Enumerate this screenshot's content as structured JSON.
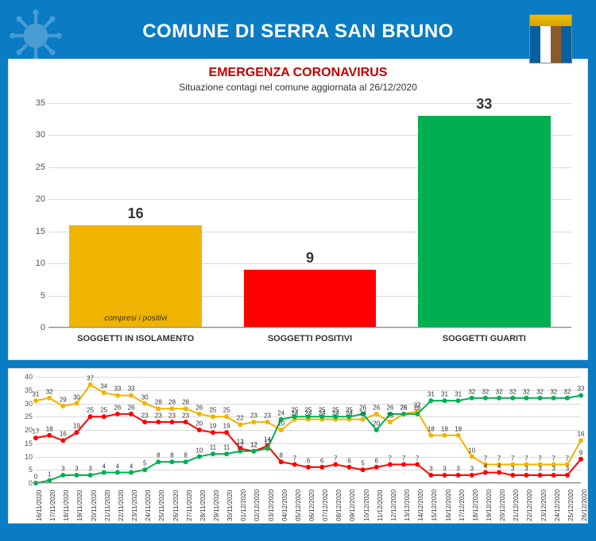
{
  "header": {
    "title": "COMUNE DI SERRA SAN BRUNO"
  },
  "bar_chart": {
    "type": "bar",
    "title": "EMERGENZA CORONAVIRUS",
    "subtitle": "Situazione contagi nel comune aggiornata al 26/12/2020",
    "title_color": "#c00000",
    "subtitle_color": "#333333",
    "title_fontsize": 16,
    "subtitle_fontsize": 12,
    "ylim": [
      0,
      35
    ],
    "ytick_step": 5,
    "grid_color": "#d9d9d9",
    "background_color": "#ffffff",
    "categories": [
      "SOGGETTI IN ISOLAMENTO",
      "SOGGETTI POSITIVI",
      "SOGGETTI GUARITI"
    ],
    "values": [
      16,
      9,
      33
    ],
    "bar_colors": [
      "#f0b400",
      "#ff0000",
      "#00b050"
    ],
    "value_fontsize": 18,
    "category_fontsize": 11,
    "bar_note": "compresi i positivi",
    "bar_note_index": 0,
    "bar_width": 0.76
  },
  "line_chart": {
    "type": "line",
    "ylim": [
      0,
      40
    ],
    "ytick_step": 5,
    "grid_color": "#d9d9d9",
    "background_color": "#ffffff",
    "xlabel_fontsize": 8,
    "value_label_fontsize": 8,
    "marker": "circle",
    "marker_size": 3,
    "line_width": 2,
    "dates": [
      "16/11/2020",
      "17/11/2020",
      "18/11/2020",
      "19/11/2020",
      "20/11/2020",
      "21/11/2020",
      "22/11/2020",
      "23/11/2020",
      "24/11/2020",
      "25/11/2020",
      "26/11/2020",
      "27/11/2020",
      "28/11/2020",
      "29/11/2020",
      "30/11/2020",
      "01/12/2020",
      "02/12/2020",
      "03/12/2020",
      "04/12/2020",
      "05/12/2020",
      "06/12/2020",
      "07/12/2020",
      "08/12/2020",
      "09/12/2020",
      "10/12/2020",
      "11/12/2020",
      "12/12/2020",
      "13/12/2020",
      "14/12/2020",
      "15/12/2020",
      "16/12/2020",
      "17/12/2020",
      "18/12/2020",
      "19/12/2020",
      "20/12/2020",
      "21/12/2020",
      "22/12/2020",
      "23/12/2020",
      "24/12/2020",
      "25/12/2020",
      "26/12/2020"
    ],
    "series": [
      {
        "name": "isolamento",
        "color": "#f0b400",
        "values": [
          31,
          32,
          29,
          30,
          37,
          34,
          33,
          33,
          30,
          28,
          28,
          28,
          26,
          25,
          25,
          22,
          23,
          23,
          20,
          24,
          24,
          24,
          24,
          24,
          24,
          26,
          23,
          26,
          27,
          18,
          18,
          18,
          10,
          7,
          7,
          7,
          7,
          7,
          7,
          7,
          16
        ]
      },
      {
        "name": "positivi",
        "color": "#ff0000",
        "values": [
          17,
          18,
          16,
          19,
          25,
          25,
          26,
          26,
          23,
          23,
          23,
          23,
          20,
          19,
          19,
          13,
          12,
          14,
          8,
          7,
          6,
          6,
          7,
          6,
          5,
          6,
          7,
          7,
          7,
          3,
          3,
          3,
          3,
          4,
          4,
          3,
          3,
          3,
          3,
          3,
          9
        ]
      },
      {
        "name": "guariti",
        "color": "#00b050",
        "values": [
          0,
          1,
          3,
          3,
          3,
          4,
          4,
          4,
          5,
          8,
          8,
          8,
          10,
          11,
          11,
          12,
          12,
          13,
          24,
          25,
          25,
          25,
          25,
          25,
          26,
          20,
          26,
          26,
          26,
          31,
          31,
          31,
          32,
          32,
          32,
          32,
          32,
          32,
          32,
          32,
          33
        ]
      }
    ]
  }
}
